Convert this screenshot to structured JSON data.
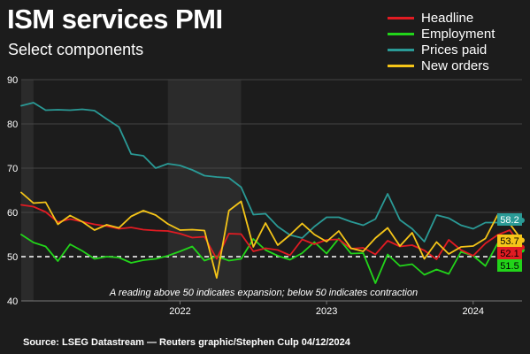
{
  "title": "ISM services PMI",
  "subtitle": "Select components",
  "source": "Source: LSEG Datastream — Reuters graphic/Stephen Culp 04/12/2024",
  "annotation": "A reading above 50 indicates expansion; below 50 indicates contraction",
  "colors": {
    "background": "#1c1c1c",
    "recession_band": "#2b2b2b",
    "gridline": "#444444",
    "threshold": "#ffffff",
    "headline": "#e11b22",
    "employment": "#22d41a",
    "prices_paid": "#2a9a96",
    "new_orders": "#f5c518"
  },
  "chart_data": {
    "type": "line",
    "title": "ISM services PMI",
    "subtitle": "Select components",
    "x_start": "2021-06",
    "x_end": "2024-11",
    "x_tick_labels": [
      "2022",
      "2023",
      "2024"
    ],
    "x_ticks": [
      "2022-07",
      "2023-07",
      "2024-07"
    ],
    "ylim": [
      40,
      90
    ],
    "y_ticks": [
      40,
      50,
      60,
      70,
      80,
      90
    ],
    "threshold": 50,
    "shaded_periods": [
      {
        "start": "2021-06",
        "end": "2021-07"
      },
      {
        "start": "2022-06",
        "end": "2022-12"
      }
    ],
    "grid": true,
    "legend_position": "top-right",
    "series": [
      {
        "name": "Headline",
        "key": "headline",
        "end_label": "52.1",
        "values": [
          61.7,
          61.3,
          60.1,
          57.8,
          58.5,
          57.9,
          57.3,
          56.9,
          56.3,
          56.6,
          56.1,
          55.9,
          55.8,
          55.2,
          54.3,
          54.5,
          49.5,
          55.2,
          55.1,
          51.2,
          51.9,
          51.5,
          50.3,
          53.9,
          52.8,
          53.8,
          53.9,
          51.8,
          52.0,
          50.5,
          53.6,
          52.3,
          52.6,
          51.4,
          49.4,
          53.8,
          51.5,
          50.2,
          53.0,
          54.9,
          56.0,
          52.1
        ]
      },
      {
        "name": "Employment",
        "key": "employment",
        "end_label": "51.5",
        "values": [
          55.0,
          53.2,
          52.3,
          49.0,
          52.8,
          51.3,
          49.5,
          50.0,
          49.8,
          48.6,
          49.2,
          49.5,
          50.2,
          51.2,
          52.3,
          49.1,
          50.1,
          49.1,
          49.5,
          54.0,
          51.5,
          50.2,
          49.3,
          50.8,
          53.3,
          50.7,
          54.1,
          50.7,
          50.8,
          44.0,
          50.5,
          47.9,
          48.3,
          45.9,
          47.1,
          46.1,
          51.1,
          50.2,
          47.9,
          53.0,
          52.1,
          51.5
        ]
      },
      {
        "name": "Prices paid",
        "key": "prices_paid",
        "end_label": "58.2",
        "values": [
          84.1,
          84.8,
          83.1,
          83.2,
          83.1,
          83.3,
          83.0,
          81.1,
          79.3,
          73.2,
          72.8,
          70.0,
          71.0,
          70.6,
          69.6,
          68.3,
          68.0,
          67.8,
          65.7,
          59.5,
          59.7,
          56.8,
          54.9,
          54.2,
          56.8,
          58.9,
          58.9,
          57.9,
          57.1,
          58.5,
          64.2,
          58.3,
          56.3,
          53.4,
          59.4,
          58.7,
          57.1,
          56.3,
          57.7,
          57.7,
          59.4,
          58.2
        ]
      },
      {
        "name": "New orders",
        "key": "new_orders",
        "end_label": "53.7",
        "values": [
          64.5,
          62.1,
          62.3,
          57.3,
          59.3,
          57.9,
          56.0,
          57.2,
          56.5,
          59.1,
          60.4,
          59.4,
          57.4,
          56.0,
          56.1,
          55.9,
          45.2,
          60.4,
          62.5,
          52.2,
          57.6,
          52.6,
          54.9,
          57.5,
          55.0,
          53.4,
          55.8,
          51.9,
          51.2,
          54.2,
          56.5,
          52.4,
          55.4,
          49.5,
          53.3,
          50.6,
          52.2,
          52.4,
          54.1,
          59.4,
          57.4,
          53.7
        ]
      }
    ]
  }
}
